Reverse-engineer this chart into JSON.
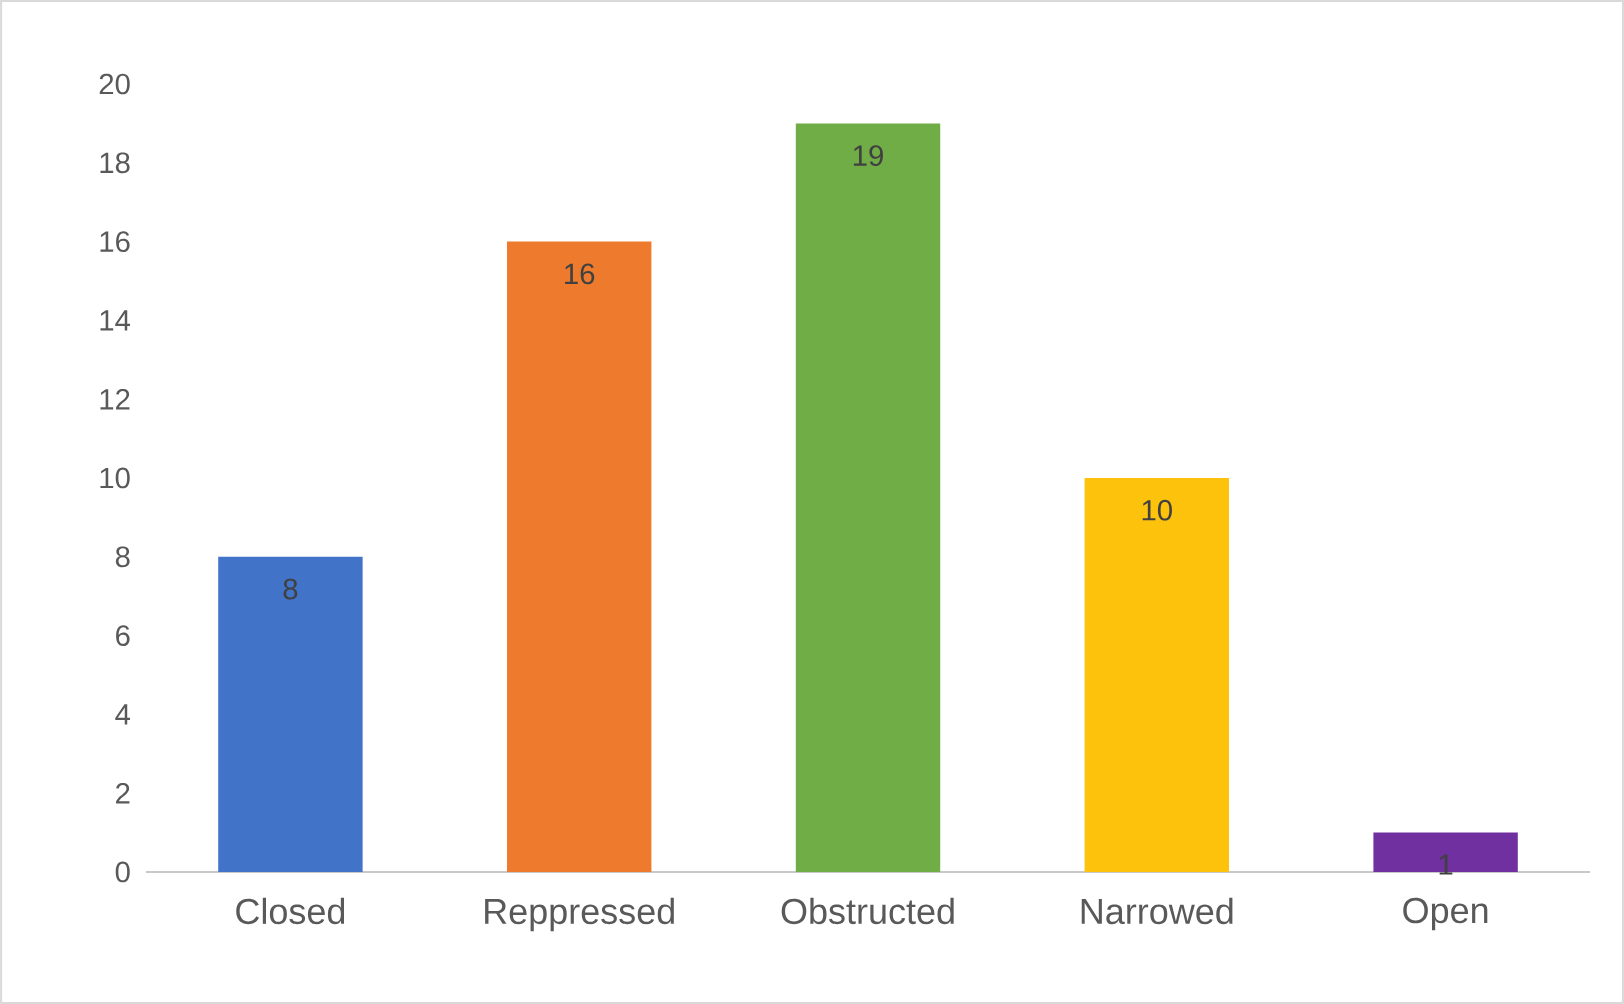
{
  "chart_data": {
    "type": "bar",
    "categories": [
      "Closed",
      "Reppressed",
      "Obstructed",
      "Narrowed",
      "Open"
    ],
    "values": [
      8,
      16,
      19,
      10,
      1
    ],
    "colors": [
      "#4173c8",
      "#ee7a2e",
      "#70ad47",
      "#fcc20c",
      "#7030a0"
    ],
    "ylim": [
      0,
      20
    ],
    "yticks": [
      0,
      2,
      4,
      6,
      8,
      10,
      12,
      14,
      16,
      18,
      20
    ],
    "data_labels": true
  }
}
